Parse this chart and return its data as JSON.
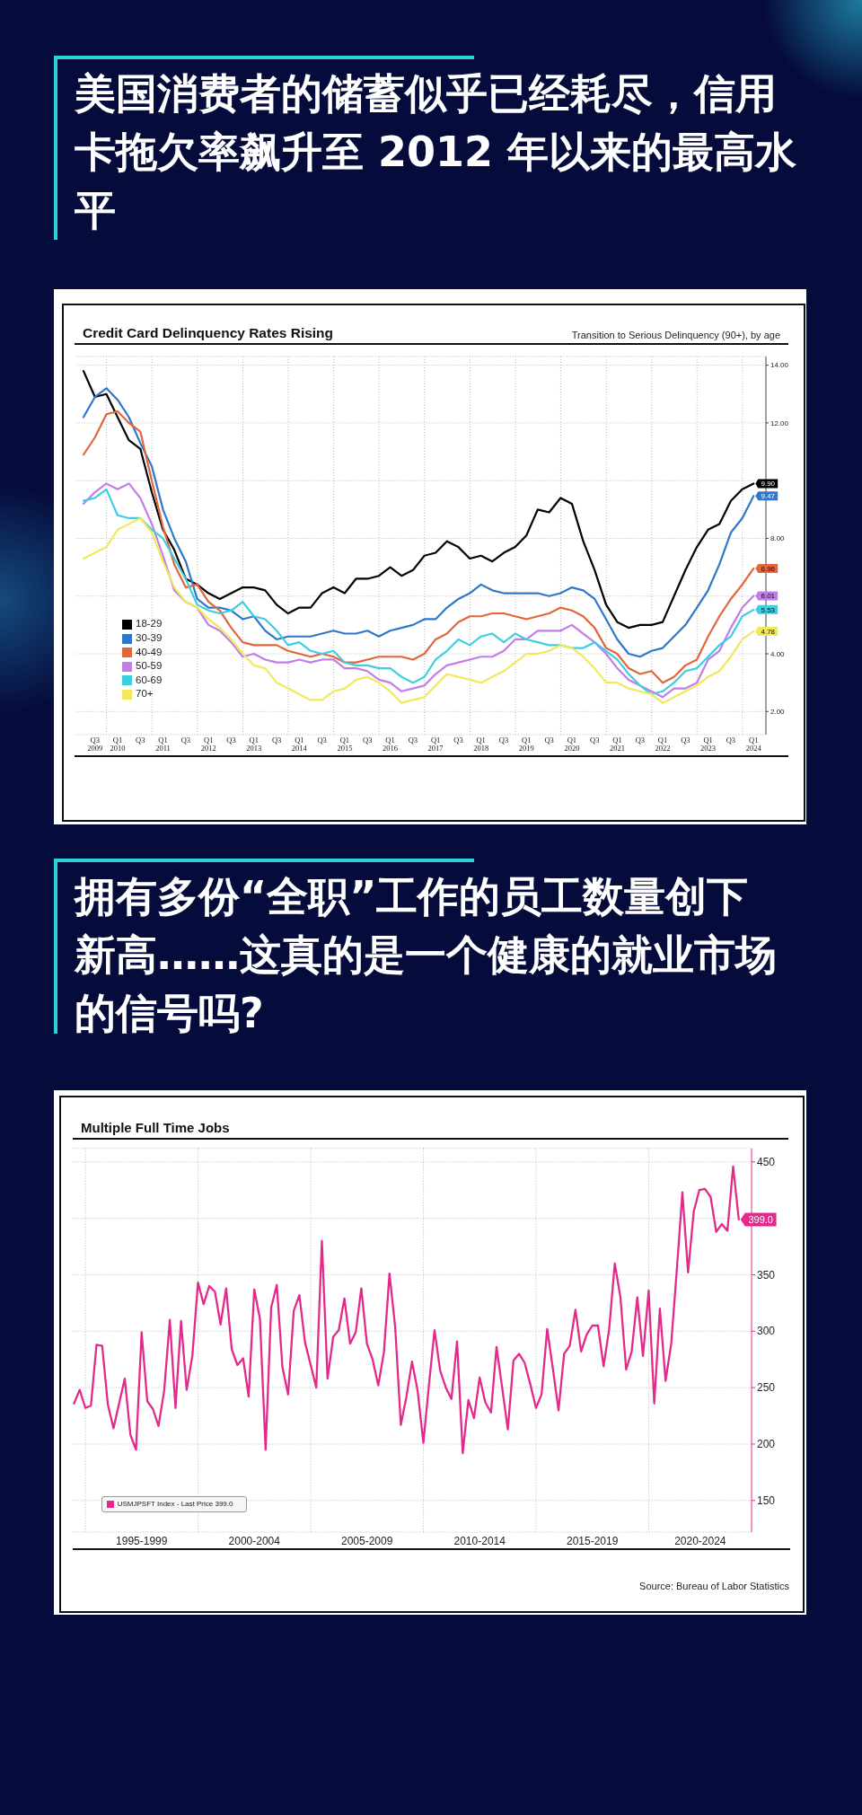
{
  "chart_data": [
    {
      "type": "line",
      "title": "美国消费者的储蓄似乎已经耗尽，信用卡拖欠率飙升至 2012 年以来的最高水平",
      "subtitle": "Credit Card Delinquency Rates Rising",
      "annotations": [
        "Transition to Serious Delinquency (90+), by age"
      ],
      "x": [
        "2009-06-30",
        "2009-09-30",
        "2009-12-31",
        "2010-03-31",
        "2010-06-30",
        "2010-09-30",
        "2010-12-31",
        "2011-03-31",
        "2011-06-30",
        "2011-09-30",
        "2011-12-31",
        "2012-03-31",
        "2012-06-30",
        "2012-09-30",
        "2012-12-31",
        "2013-03-31",
        "2013-06-30",
        "2013-09-30",
        "2013-12-31",
        "2014-03-31",
        "2014-06-30",
        "2014-09-30",
        "2014-12-31",
        "2015-03-31",
        "2015-06-30",
        "2015-09-30",
        "2015-12-31",
        "2016-03-31",
        "2016-06-30",
        "2016-09-30",
        "2016-12-31",
        "2017-03-31",
        "2017-06-30",
        "2017-09-30",
        "2017-12-31",
        "2018-03-31",
        "2018-06-30",
        "2018-09-30",
        "2018-12-31",
        "2019-03-31",
        "2019-06-30",
        "2019-09-30",
        "2019-12-31",
        "2020-03-31",
        "2020-06-30",
        "2020-09-30",
        "2020-12-31",
        "2021-03-31",
        "2021-06-30",
        "2021-09-30",
        "2021-12-31",
        "2022-03-31",
        "2022-06-30",
        "2022-09-30",
        "2022-12-31",
        "2023-03-31",
        "2023-06-30",
        "2023-09-30",
        "2023-12-31",
        "2024-03-31"
      ],
      "series": [
        {
          "name": "18-29",
          "color": "#000000",
          "values": [
            13.8,
            12.9,
            13.0,
            12.2,
            11.4,
            11.1,
            9.6,
            8.3,
            7.6,
            6.6,
            6.4,
            6.1,
            5.9,
            6.1,
            6.3,
            6.3,
            6.2,
            5.7,
            5.4,
            5.6,
            5.6,
            6.1,
            6.3,
            6.1,
            6.6,
            6.6,
            6.7,
            7.0,
            6.7,
            6.9,
            7.4,
            7.5,
            7.9,
            7.7,
            7.3,
            7.4,
            7.2,
            7.5,
            7.7,
            8.1,
            9.0,
            8.9,
            9.4,
            9.2,
            7.9,
            6.9,
            5.7,
            5.1,
            4.9,
            5.0,
            5.0,
            5.1,
            6.0,
            6.9,
            7.7,
            8.3,
            8.5,
            9.3,
            9.7,
            9.9
          ],
          "value_labels": [
            null,
            null,
            null,
            null,
            null,
            null,
            null,
            null,
            null,
            null,
            null,
            null,
            null,
            null,
            null,
            null,
            null,
            null,
            null,
            null,
            null,
            null,
            null,
            null,
            null,
            null,
            null,
            null,
            null,
            null,
            null,
            null,
            null,
            null,
            null,
            null,
            null,
            null,
            null,
            null,
            null,
            null,
            null,
            null,
            null,
            null,
            null,
            null,
            null,
            null,
            null,
            null,
            null,
            null,
            null,
            null,
            null,
            null,
            null,
            "9.90"
          ]
        },
        {
          "name": "30-39",
          "color": "#2f78c9",
          "values": [
            12.2,
            12.9,
            13.2,
            12.8,
            12.2,
            11.3,
            10.5,
            9.0,
            8.0,
            7.2,
            5.9,
            5.6,
            5.6,
            5.5,
            5.2,
            5.3,
            4.8,
            4.5,
            4.6,
            4.6,
            4.6,
            4.7,
            4.8,
            4.7,
            4.7,
            4.8,
            4.6,
            4.8,
            4.9,
            5.0,
            5.2,
            5.2,
            5.6,
            5.9,
            6.1,
            6.4,
            6.2,
            6.1,
            6.1,
            6.1,
            6.1,
            6.0,
            6.1,
            6.3,
            6.2,
            5.9,
            5.2,
            4.5,
            4.0,
            3.9,
            4.1,
            4.2,
            4.6,
            5.0,
            5.6,
            6.2,
            7.1,
            8.2,
            8.7,
            9.47
          ],
          "value_labels": [
            null,
            null,
            null,
            null,
            null,
            null,
            null,
            null,
            null,
            null,
            null,
            null,
            null,
            null,
            null,
            null,
            null,
            null,
            null,
            null,
            null,
            null,
            null,
            null,
            null,
            null,
            null,
            null,
            null,
            null,
            null,
            null,
            null,
            null,
            null,
            null,
            null,
            null,
            null,
            null,
            null,
            null,
            null,
            null,
            null,
            null,
            null,
            null,
            null,
            null,
            null,
            null,
            null,
            null,
            null,
            null,
            null,
            null,
            null,
            "9.47"
          ]
        },
        {
          "name": "40-49",
          "color": "#e2663a",
          "values": [
            10.9,
            11.5,
            12.3,
            12.4,
            12.0,
            11.7,
            10.0,
            8.4,
            7.1,
            6.3,
            6.4,
            5.8,
            5.5,
            4.9,
            4.4,
            4.3,
            4.3,
            4.3,
            4.1,
            4.0,
            3.9,
            4.0,
            3.9,
            3.7,
            3.7,
            3.8,
            3.9,
            3.9,
            3.9,
            3.8,
            4.0,
            4.5,
            4.7,
            5.1,
            5.3,
            5.3,
            5.4,
            5.4,
            5.3,
            5.2,
            5.3,
            5.4,
            5.6,
            5.5,
            5.3,
            4.9,
            4.2,
            4.0,
            3.5,
            3.3,
            3.4,
            3.0,
            3.2,
            3.6,
            3.8,
            4.6,
            5.3,
            5.9,
            6.4,
            6.96
          ],
          "value_labels": [
            null,
            null,
            null,
            null,
            null,
            null,
            null,
            null,
            null,
            null,
            null,
            null,
            null,
            null,
            null,
            null,
            null,
            null,
            null,
            null,
            null,
            null,
            null,
            null,
            null,
            null,
            null,
            null,
            null,
            null,
            null,
            null,
            null,
            null,
            null,
            null,
            null,
            null,
            null,
            null,
            null,
            null,
            null,
            null,
            null,
            null,
            null,
            null,
            null,
            null,
            null,
            null,
            null,
            null,
            null,
            null,
            null,
            null,
            null,
            "6.96"
          ]
        },
        {
          "name": "50-59",
          "color": "#c27ee6",
          "values": [
            9.2,
            9.6,
            9.9,
            9.7,
            9.9,
            9.4,
            8.5,
            7.4,
            6.2,
            5.8,
            5.6,
            5.0,
            4.8,
            4.4,
            3.9,
            4.0,
            3.8,
            3.7,
            3.7,
            3.8,
            3.7,
            3.8,
            3.8,
            3.5,
            3.5,
            3.4,
            3.1,
            3.0,
            2.7,
            2.8,
            2.9,
            3.3,
            3.6,
            3.7,
            3.8,
            3.9,
            3.9,
            4.1,
            4.5,
            4.5,
            4.8,
            4.8,
            4.8,
            5.0,
            4.7,
            4.4,
            4.0,
            3.5,
            3.1,
            2.9,
            2.7,
            2.5,
            2.8,
            2.8,
            3.0,
            3.8,
            4.1,
            4.9,
            5.6,
            6.01
          ],
          "value_labels": [
            null,
            null,
            null,
            null,
            null,
            null,
            null,
            null,
            null,
            null,
            null,
            null,
            null,
            null,
            null,
            null,
            null,
            null,
            null,
            null,
            null,
            null,
            null,
            null,
            null,
            null,
            null,
            null,
            null,
            null,
            null,
            null,
            null,
            null,
            null,
            null,
            null,
            null,
            null,
            null,
            null,
            null,
            null,
            null,
            null,
            null,
            null,
            null,
            null,
            null,
            null,
            null,
            null,
            null,
            null,
            null,
            null,
            null,
            null,
            "6.01"
          ]
        },
        {
          "name": "60-69",
          "color": "#3fcde0",
          "values": [
            9.3,
            9.4,
            9.7,
            8.8,
            8.7,
            8.7,
            8.3,
            8.0,
            7.3,
            6.6,
            5.7,
            5.5,
            5.4,
            5.5,
            5.8,
            5.3,
            5.2,
            4.8,
            4.3,
            4.4,
            4.1,
            4.0,
            4.1,
            3.7,
            3.6,
            3.6,
            3.5,
            3.5,
            3.2,
            3.0,
            3.2,
            3.8,
            4.1,
            4.5,
            4.3,
            4.6,
            4.7,
            4.4,
            4.7,
            4.5,
            4.4,
            4.3,
            4.3,
            4.2,
            4.2,
            4.4,
            4.1,
            3.8,
            3.3,
            2.9,
            2.6,
            2.7,
            3.0,
            3.4,
            3.5,
            3.9,
            4.3,
            4.6,
            5.3,
            5.53
          ],
          "value_labels": [
            null,
            null,
            null,
            null,
            null,
            null,
            null,
            null,
            null,
            null,
            null,
            null,
            null,
            null,
            null,
            null,
            null,
            null,
            null,
            null,
            null,
            null,
            null,
            null,
            null,
            null,
            null,
            null,
            null,
            null,
            null,
            null,
            null,
            null,
            null,
            null,
            null,
            null,
            null,
            null,
            null,
            null,
            null,
            null,
            null,
            null,
            null,
            null,
            null,
            null,
            null,
            null,
            null,
            null,
            null,
            null,
            null,
            null,
            null,
            "5.53"
          ]
        },
        {
          "name": "70+",
          "color": "#f2e85c",
          "values": [
            7.3,
            7.5,
            7.7,
            8.3,
            8.5,
            8.7,
            8.2,
            7.2,
            6.3,
            5.8,
            5.6,
            5.2,
            4.9,
            4.5,
            4.0,
            3.6,
            3.5,
            3.0,
            2.8,
            2.6,
            2.4,
            2.4,
            2.7,
            2.8,
            3.1,
            3.2,
            3.0,
            2.7,
            2.3,
            2.4,
            2.5,
            2.9,
            3.3,
            3.2,
            3.1,
            3.0,
            3.2,
            3.4,
            3.7,
            4.0,
            4.0,
            4.1,
            4.3,
            4.2,
            3.9,
            3.5,
            3.0,
            3.0,
            2.8,
            2.7,
            2.6,
            2.3,
            2.5,
            2.7,
            2.9,
            3.2,
            3.4,
            3.9,
            4.5,
            4.78
          ],
          "value_labels": [
            null,
            null,
            null,
            null,
            null,
            null,
            null,
            null,
            null,
            null,
            null,
            null,
            null,
            null,
            null,
            null,
            null,
            null,
            null,
            null,
            null,
            null,
            null,
            null,
            null,
            null,
            null,
            null,
            null,
            null,
            null,
            null,
            null,
            null,
            null,
            null,
            null,
            null,
            null,
            null,
            null,
            null,
            null,
            null,
            null,
            null,
            null,
            null,
            null,
            null,
            null,
            null,
            null,
            null,
            null,
            null,
            null,
            null,
            null,
            "4.78"
          ]
        }
      ],
      "xlim": [
        "2009-05-01",
        "2024-07-08"
      ],
      "xticks": [
        {
          "value": "2009-09-30",
          "label": "Q3\n2009"
        },
        {
          "value": "2010-01-01",
          "label": null
        },
        {
          "value": "2010-03-31",
          "label": "Q1\n2010"
        },
        {
          "value": "2010-09-30",
          "label": "Q3"
        },
        {
          "value": "2011-01-01",
          "label": null
        },
        {
          "value": "2011-03-31",
          "label": "Q1\n2011"
        },
        {
          "value": "2011-09-30",
          "label": "Q3"
        },
        {
          "value": "2012-01-01",
          "label": null
        },
        {
          "value": "2012-03-31",
          "label": "Q1\n2012"
        },
        {
          "value": "2012-09-30",
          "label": "Q3"
        },
        {
          "value": "2013-01-01",
          "label": null
        },
        {
          "value": "2013-03-31",
          "label": "Q1\n2013"
        },
        {
          "value": "2013-09-30",
          "label": "Q3"
        },
        {
          "value": "2014-01-01",
          "label": null
        },
        {
          "value": "2014-03-31",
          "label": "Q1\n2014"
        },
        {
          "value": "2014-09-30",
          "label": "Q3"
        },
        {
          "value": "2015-01-01",
          "label": null
        },
        {
          "value": "2015-03-31",
          "label": "Q1\n2015"
        },
        {
          "value": "2015-09-30",
          "label": "Q3"
        },
        {
          "value": "2016-01-01",
          "label": null
        },
        {
          "value": "2016-03-31",
          "label": "Q1\n2016"
        },
        {
          "value": "2016-09-30",
          "label": "Q3"
        },
        {
          "value": "2017-01-01",
          "label": null
        },
        {
          "value": "2017-03-31",
          "label": "Q1\n2017"
        },
        {
          "value": "2017-09-30",
          "label": "Q3"
        },
        {
          "value": "2018-01-01",
          "label": null
        },
        {
          "value": "2018-03-31",
          "label": "Q1\n2018"
        },
        {
          "value": "2018-09-30",
          "label": "Q3"
        },
        {
          "value": "2019-01-01",
          "label": null
        },
        {
          "value": "2019-03-31",
          "label": "Q1\n2019"
        },
        {
          "value": "2019-09-30",
          "label": "Q3"
        },
        {
          "value": "2020-01-01",
          "label": null
        },
        {
          "value": "2020-03-31",
          "label": "Q1\n2020"
        },
        {
          "value": "2020-09-30",
          "label": "Q3"
        },
        {
          "value": "2021-01-01",
          "label": null
        },
        {
          "value": "2021-03-31",
          "label": "Q1\n2021"
        },
        {
          "value": "2021-09-30",
          "label": "Q3"
        },
        {
          "value": "2022-01-01",
          "label": null
        },
        {
          "value": "2022-03-31",
          "label": "Q1\n2022"
        },
        {
          "value": "2022-09-30",
          "label": "Q3"
        },
        {
          "value": "2023-01-01",
          "label": null
        },
        {
          "value": "2023-03-31",
          "label": "Q1\n2023"
        },
        {
          "value": "2023-09-30",
          "label": "Q3"
        },
        {
          "value": "2024-01-01",
          "label": null
        },
        {
          "value": "2024-03-31",
          "label": "Q1\n2024"
        }
      ],
      "ylim": [
        1.2,
        14.3
      ],
      "yticks": [
        {
          "value": 2,
          "label": "2.00"
        },
        {
          "value": 4,
          "label": "4.00"
        },
        {
          "value": 6,
          "label": null
        },
        {
          "value": 8,
          "label": "8.00"
        },
        {
          "value": 10,
          "label": null
        },
        {
          "value": 12,
          "label": "12.00"
        },
        {
          "value": 14,
          "label": "14.00"
        }
      ],
      "grid": true,
      "legend": "bottom left"
    },
    {
      "type": "line",
      "title": "拥有多份“全职”工作的员工数量创下新高……这真的是一个健康的就业市场的信号吗?",
      "subtitle": "Multiple Full Time Jobs",
      "annotations": [
        "Source: Bureau of Labor Statistics"
      ],
      "x": [
        "1994-06-30",
        "1994-09-30",
        "1994-12-31",
        "1995-03-31",
        "1995-06-30",
        "1995-09-30",
        "1995-12-31",
        "1996-03-31",
        "1996-06-30",
        "1996-09-30",
        "1996-12-31",
        "1997-03-31",
        "1997-06-30",
        "1997-09-30",
        "1997-12-31",
        "1998-03-31",
        "1998-06-30",
        "1998-09-30",
        "1998-12-31",
        "1999-03-31",
        "1999-06-30",
        "1999-09-30",
        "1999-12-31",
        "2000-03-31",
        "2000-06-30",
        "2000-09-30",
        "2000-12-31",
        "2001-03-31",
        "2001-06-30",
        "2001-09-30",
        "2001-12-31",
        "2002-03-31",
        "2002-06-30",
        "2002-09-30",
        "2002-12-31",
        "2003-03-31",
        "2003-06-30",
        "2003-09-30",
        "2003-12-31",
        "2004-03-31",
        "2004-06-30",
        "2004-09-30",
        "2004-12-31",
        "2005-03-31",
        "2005-06-30",
        "2005-09-30",
        "2005-12-31",
        "2006-03-31",
        "2006-06-30",
        "2006-09-30",
        "2006-12-31",
        "2007-03-31",
        "2007-06-30",
        "2007-09-30",
        "2007-12-31",
        "2008-03-31",
        "2008-06-30",
        "2008-09-30",
        "2008-12-31",
        "2009-03-31",
        "2009-06-30",
        "2009-09-30",
        "2009-12-31",
        "2010-03-31",
        "2010-06-30",
        "2010-09-30",
        "2010-12-31",
        "2011-03-31",
        "2011-06-30",
        "2011-09-30",
        "2011-12-31",
        "2012-03-31",
        "2012-06-30",
        "2012-09-30",
        "2012-12-31",
        "2013-03-31",
        "2013-06-30",
        "2013-09-30",
        "2013-12-31",
        "2014-03-31",
        "2014-06-30",
        "2014-09-30",
        "2014-12-31",
        "2015-03-31",
        "2015-06-30",
        "2015-09-30",
        "2015-12-31",
        "2016-03-31",
        "2016-06-30",
        "2016-09-30",
        "2016-12-31",
        "2017-03-31",
        "2017-06-30",
        "2017-09-30",
        "2017-12-31",
        "2018-03-31",
        "2018-06-30",
        "2018-09-30",
        "2018-12-31",
        "2019-03-31",
        "2019-06-30",
        "2019-09-30",
        "2019-12-31",
        "2020-03-31",
        "2020-06-30",
        "2020-09-30",
        "2020-12-31",
        "2021-03-31",
        "2021-06-30",
        "2021-09-30",
        "2021-12-31",
        "2022-03-31",
        "2022-06-30",
        "2022-09-30",
        "2022-12-31",
        "2023-03-31",
        "2023-06-30",
        "2023-09-30",
        "2023-12-31"
      ],
      "series": [
        {
          "name": "USMJPSFT Index - Last Price 399.0",
          "color": "#e4298c",
          "values": [
            236,
            248,
            232,
            234,
            288,
            287,
            235,
            214,
            236,
            258,
            208,
            195,
            299,
            238,
            231,
            216,
            247,
            310,
            232,
            309,
            248,
            278,
            343,
            324,
            340,
            335,
            306,
            338,
            284,
            270,
            276,
            242,
            337,
            311,
            195,
            321,
            341,
            268,
            244,
            318,
            332,
            290,
            270,
            250,
            380,
            258,
            295,
            301,
            329,
            289,
            299,
            338,
            289,
            275,
            252,
            281,
            351,
            304,
            217,
            242,
            273,
            247,
            201,
            252,
            301,
            265,
            250,
            240,
            291,
            192,
            239,
            223,
            259,
            237,
            228,
            286,
            250,
            213,
            274,
            280,
            272,
            253,
            232,
            244,
            302,
            267,
            230,
            280,
            287,
            319,
            282,
            297,
            305,
            305,
            269,
            302,
            360,
            330,
            266,
            282,
            330,
            278,
            336,
            236,
            320,
            256,
            289,
            354,
            423,
            352,
            406,
            425,
            426,
            419,
            388,
            395,
            389,
            446,
            399
          ],
          "value_labels": [
            null,
            null,
            null,
            null,
            null,
            null,
            null,
            null,
            null,
            null,
            null,
            null,
            null,
            null,
            null,
            null,
            null,
            null,
            null,
            null,
            null,
            null,
            null,
            null,
            null,
            null,
            null,
            null,
            null,
            null,
            null,
            null,
            null,
            null,
            null,
            null,
            null,
            null,
            null,
            null,
            null,
            null,
            null,
            null,
            null,
            null,
            null,
            null,
            null,
            null,
            null,
            null,
            null,
            null,
            null,
            null,
            null,
            null,
            null,
            null,
            null,
            null,
            null,
            null,
            null,
            null,
            null,
            null,
            null,
            null,
            null,
            null,
            null,
            null,
            null,
            null,
            null,
            null,
            null,
            null,
            null,
            null,
            null,
            null,
            null,
            null,
            null,
            null,
            null,
            null,
            null,
            null,
            null,
            null,
            null,
            null,
            null,
            null,
            null,
            null,
            null,
            null,
            null,
            null,
            null,
            null,
            null,
            null,
            null,
            null,
            null,
            null,
            null,
            null,
            null,
            null,
            null,
            null,
            "399.0"
          ]
        }
      ],
      "xlim": [
        "1994-06-05",
        "2024-07-25"
      ],
      "xticks": [
        {
          "value": "1995-01-01",
          "label": null
        },
        {
          "value": "1997-07-01",
          "label": "1995-1999"
        },
        {
          "value": "2000-01-01",
          "label": null
        },
        {
          "value": "2002-07-01",
          "label": "2000-2004"
        },
        {
          "value": "2005-01-01",
          "label": null
        },
        {
          "value": "2007-07-01",
          "label": "2005-2009"
        },
        {
          "value": "2010-01-01",
          "label": null
        },
        {
          "value": "2012-07-01",
          "label": "2010-2014"
        },
        {
          "value": "2015-01-01",
          "label": null
        },
        {
          "value": "2017-07-01",
          "label": "2015-2019"
        },
        {
          "value": "2020-01-01",
          "label": null
        },
        {
          "value": "2022-04-15",
          "label": "2020-2024"
        }
      ],
      "ylim": [
        122,
        462
      ],
      "yticks": [
        150,
        200,
        250,
        300,
        350,
        {
          "value": 400,
          "label": null
        },
        450
      ],
      "grid": true,
      "legend": "bottom left"
    }
  ]
}
